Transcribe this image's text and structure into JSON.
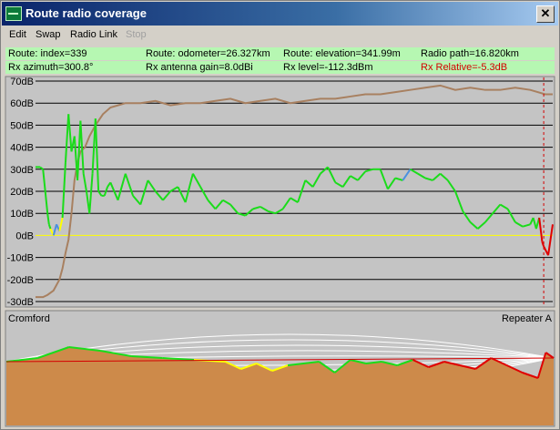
{
  "window": {
    "title": "Route radio coverage",
    "close_glyph": "✕"
  },
  "menu": {
    "edit": "Edit",
    "swap": "Swap",
    "radio_link": "Radio Link",
    "stop": "Stop"
  },
  "info": {
    "index": "Route: index=339",
    "odometer": "Route: odometer=26.327km",
    "elevation": "Route: elevation=341.99m",
    "radio_path": "Radio path=16.820km",
    "azimuth": "Rx azimuth=300.8°",
    "antenna_gain": "Rx antenna gain=8.0dBi",
    "rx_level": "Rx level=-112.3dBm",
    "rx_relative": "Rx Relative=-5.3dB"
  },
  "colors": {
    "info_bg": "#b6f7b2",
    "rx_relative_text": "#d40000",
    "elevation_line": "#a88060",
    "signal_good": "#1adc1a",
    "signal_blue": "#4a90e0",
    "signal_marginal": "#ffff00",
    "signal_bad": "#e00000",
    "terrain_fill": "#cd8a4a",
    "zero_line": "#ffff00"
  },
  "chart_data": {
    "type": "line",
    "xlabel": "",
    "ylabel": "",
    "ylim": [
      -30,
      70
    ],
    "yticks": [
      "70dB",
      "60dB",
      "50dB",
      "40dB",
      "30dB",
      "20dB",
      "10dB",
      "0dB",
      "-10dB",
      "-20dB",
      "-30dB"
    ],
    "grid": true,
    "cursor_index": 339,
    "elevation_series": {
      "x": [
        0,
        5,
        8,
        12,
        16,
        18,
        20,
        22,
        24,
        26,
        28,
        30,
        33,
        36,
        40,
        45,
        50,
        55,
        60,
        70,
        80,
        90,
        100,
        110,
        120,
        130,
        140,
        150,
        160,
        170,
        180,
        190,
        200,
        210,
        220,
        230,
        240,
        250,
        260,
        270,
        280,
        290,
        300,
        310,
        320,
        330,
        340,
        345
      ],
      "values": [
        -28,
        -28,
        -27,
        -25,
        -20,
        -15,
        -8,
        -2,
        10,
        25,
        33,
        38,
        40,
        45,
        50,
        55,
        58,
        59,
        60,
        60,
        61,
        59,
        60,
        60,
        61,
        62,
        60,
        61,
        62,
        60,
        61,
        62,
        62,
        63,
        64,
        64,
        65,
        66,
        67,
        68,
        66,
        67,
        66,
        66,
        67,
        66,
        64,
        64
      ]
    },
    "signal_series": {
      "x": [
        0,
        3,
        5,
        8,
        9,
        10,
        12,
        14,
        16,
        18,
        20,
        22,
        24,
        26,
        28,
        30,
        32,
        34,
        36,
        38,
        40,
        42,
        44,
        46,
        48,
        50,
        55,
        60,
        65,
        70,
        75,
        80,
        85,
        90,
        95,
        100,
        105,
        110,
        115,
        120,
        125,
        130,
        135,
        140,
        145,
        150,
        155,
        160,
        165,
        170,
        175,
        180,
        185,
        190,
        195,
        200,
        205,
        210,
        215,
        220,
        225,
        230,
        235,
        240,
        245,
        250,
        255,
        260,
        265,
        270,
        275,
        280,
        285,
        290,
        295,
        300,
        305,
        310,
        315,
        320,
        325,
        330,
        332,
        334,
        336,
        338,
        339,
        342,
        345
      ],
      "values": [
        31,
        31,
        30,
        10,
        5,
        3,
        0,
        5,
        2,
        8,
        33,
        55,
        38,
        45,
        25,
        52,
        28,
        20,
        10,
        28,
        53,
        20,
        18,
        18,
        22,
        24,
        16,
        28,
        18,
        14,
        25,
        20,
        16,
        20,
        22,
        15,
        28,
        22,
        16,
        12,
        16,
        14,
        10,
        9,
        12,
        13,
        11,
        10,
        12,
        17,
        15,
        25,
        22,
        28,
        31,
        24,
        22,
        27,
        25,
        29,
        30,
        30,
        21,
        26,
        25,
        30,
        28,
        26,
        25,
        28,
        25,
        20,
        11,
        6,
        3,
        6,
        10,
        14,
        12,
        6,
        4,
        5,
        8,
        3,
        8,
        -3,
        -5,
        -9,
        5
      ],
      "blue_segments": [
        [
          13,
          16
        ],
        [
          203,
          206
        ],
        [
          246,
          250
        ]
      ],
      "threshold": 0
    },
    "profile": {
      "type": "area",
      "left_label": "Cromford",
      "right_label": "Repeater A",
      "terrain_x": [
        0,
        20,
        40,
        60,
        80,
        100,
        120,
        140,
        150,
        160,
        170,
        180,
        200,
        210,
        220,
        230,
        240,
        250,
        260,
        270,
        280,
        290,
        300,
        310,
        320,
        330,
        340,
        345,
        350
      ],
      "terrain_y": [
        10,
        12,
        18,
        16,
        13,
        12,
        11,
        10,
        6,
        9,
        5,
        8,
        10,
        4,
        11,
        9,
        10,
        8,
        11,
        7,
        10,
        8,
        6,
        12,
        8,
        4,
        1,
        15,
        12
      ]
    }
  }
}
